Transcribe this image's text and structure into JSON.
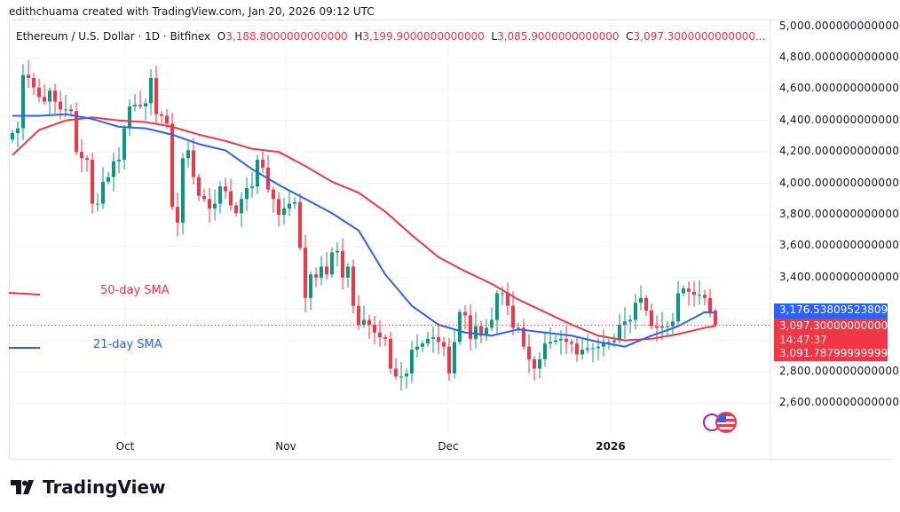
{
  "credit": "edithchuama created with TradingView.com, Jan 20, 2026 09:12 UTC",
  "legend": {
    "symbol": "Ethereum / U.S. Dollar · 1D · Bitfinex",
    "o_label": "O",
    "o": "3,188.8000000000000",
    "h_label": "H",
    "h": "3,199.9000000000000",
    "l_label": "L",
    "l": "3,085.9000000000000",
    "c_label": "C",
    "c": "3,097.3000000000000..."
  },
  "price_axis": [
    "5,000.0000000000000",
    "4,800.0000000000000",
    "4,600.0000000000000",
    "4,400.0000000000000",
    "4,200.0000000000000",
    "4,000.0000000000000",
    "3,800.0000000000000",
    "3,600.0000000000000",
    "3,400.0000000000000",
    "2,800.0000000000000",
    "2,600.0000000000000"
  ],
  "time_axis": [
    "Oct",
    "Nov",
    "Dec",
    "2026"
  ],
  "tags": {
    "sma21": "3,176.5380952380976",
    "last": "3,097.3000000000000",
    "countdown": "14:47:37",
    "sma50": "3,091.7879999999988"
  },
  "sma_labels": {
    "sma50": "50-day SMA",
    "sma21": "21-day SMA"
  },
  "colors": {
    "up": "#089981",
    "down": "#f23645",
    "sma21": "#2962ff",
    "sma50": "#f23645"
  },
  "brand": "TradingView",
  "chart_data": {
    "type": "candlestick",
    "ylim": [
      2500,
      5000
    ],
    "first_open": 4280,
    "closes": [
      4320,
      4350,
      4690,
      4670,
      4610,
      4550,
      4520,
      4590,
      4520,
      4470,
      4470,
      4460,
      4200,
      4160,
      4150,
      3870,
      3870,
      4010,
      4040,
      4140,
      4150,
      4350,
      4490,
      4500,
      4490,
      4510,
      4670,
      4440,
      4430,
      4380,
      3850,
      3750,
      4160,
      4210,
      4040,
      3920,
      3900,
      3840,
      3870,
      3980,
      3950,
      3860,
      3810,
      3900,
      3970,
      3980,
      4150,
      4100,
      3960,
      3900,
      3800,
      3840,
      3870,
      3880,
      3590,
      3270,
      3420,
      3400,
      3470,
      3420,
      3560,
      3570,
      3400,
      3470,
      3220,
      3100,
      3130,
      3100,
      3050,
      3020,
      3010,
      2820,
      2770,
      2770,
      2790,
      2940,
      2960,
      2980,
      3010,
      3020,
      2990,
      2960,
      2790,
      2990,
      3180,
      3160,
      3010,
      3090,
      3030,
      3080,
      3130,
      3300,
      3300,
      3220,
      3080,
      3080,
      2960,
      2880,
      2820,
      2880,
      2980,
      2990,
      3000,
      3010,
      2990,
      2980,
      2910,
      2940,
      2950,
      2950,
      2960,
      2990,
      2990,
      3000,
      3100,
      3120,
      3130,
      3240,
      3270,
      3190,
      3090,
      3080,
      3090,
      3090,
      3120,
      3300,
      3330,
      3310,
      3290,
      3290,
      3270,
      3180,
      3097.3
    ],
    "last_candle": {
      "open": 3188.8,
      "high": 3199.9,
      "low": 3085.9,
      "close": 3097.3
    },
    "sma50_every5": [
      4180,
      4340,
      4400,
      4420,
      4400,
      4390,
      4360,
      4310,
      4270,
      4220,
      4200,
      4110,
      4010,
      3940,
      3820,
      3670,
      3530,
      3440,
      3360,
      3260,
      3180,
      3100,
      3030,
      3000,
      3010,
      3040,
      3080,
      3091.79
    ],
    "sma21_every5": [
      4430,
      4430,
      4440,
      4410,
      4360,
      4350,
      4310,
      4250,
      4210,
      4090,
      3990,
      3900,
      3810,
      3700,
      3420,
      3220,
      3100,
      3050,
      3030,
      3070,
      3050,
      3030,
      2990,
      2960,
      3030,
      3090,
      3180,
      3176.54
    ],
    "x_ticks": [
      "Oct",
      "Nov",
      "Dec",
      "2026"
    ]
  }
}
